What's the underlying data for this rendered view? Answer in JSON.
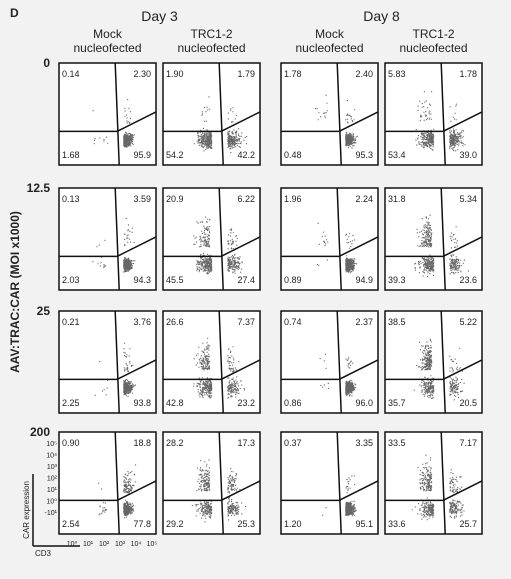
{
  "panel_letter": "D",
  "row_axis_label": "AAV:TRAC:CAR (MOI x1000)",
  "x_axis_title": "CD3",
  "y_axis_title": "CAR expression",
  "x_tick_labels": [
    "10⁰",
    "10¹",
    "10²",
    "10³",
    "10⁴",
    "10⁵"
  ],
  "y_tick_labels": [
    "10⁵",
    "10⁴",
    "10³",
    "10²",
    "10¹",
    "10⁰",
    "-10¹"
  ],
  "colors": {
    "background": "#f2f2f2",
    "panel": "#ffffff",
    "ink": "#222222"
  },
  "chart_data": {
    "type": "scatter",
    "description_type": "flow-cytometry-quadrant-grid",
    "groups": [
      {
        "label": "Day 3",
        "columns": [
          "Mock\nnucleofected",
          "TRC1-2\nnucleofected"
        ]
      },
      {
        "label": "Day 8",
        "columns": [
          "Mock\nnucleofected",
          "TRC1-2\nnucleofected"
        ]
      }
    ],
    "columns": [
      {
        "day": "Day 3",
        "label": "Mock nucleofected"
      },
      {
        "day": "Day 3",
        "label": "TRC1-2 nucleofected"
      },
      {
        "day": "Day 8",
        "label": "Mock nucleofected"
      },
      {
        "day": "Day 8",
        "label": "TRC1-2 nucleofected"
      }
    ],
    "rows": [
      "0",
      "12.5",
      "25",
      "200"
    ],
    "quadrant_order": [
      "upper-left",
      "upper-right",
      "lower-left",
      "lower-right"
    ],
    "quadrants": [
      [
        [
          "0.14",
          "2.30",
          "1.68",
          "95.9"
        ],
        [
          "1.90",
          "1.79",
          "54.2",
          "42.2"
        ],
        [
          "1.78",
          "2.40",
          "0.48",
          "95.3"
        ],
        [
          "5.83",
          "1.78",
          "53.4",
          "39.0"
        ]
      ],
      [
        [
          "0.13",
          "3.59",
          "2.03",
          "94.3"
        ],
        [
          "20.9",
          "6.22",
          "45.5",
          "27.4"
        ],
        [
          "1.96",
          "2.24",
          "0.89",
          "94.9"
        ],
        [
          "31.8",
          "5.34",
          "39.3",
          "23.6"
        ]
      ],
      [
        [
          "0.21",
          "3.76",
          "2.25",
          "93.8"
        ],
        [
          "26.6",
          "7.37",
          "42.8",
          "23.2"
        ],
        [
          "0.74",
          "2.37",
          "0.86",
          "96.0"
        ],
        [
          "38.5",
          "5.22",
          "35.7",
          "20.5"
        ]
      ],
      [
        [
          "0.90",
          "18.8",
          "2.54",
          "77.8"
        ],
        [
          "28.2",
          "17.3",
          "29.2",
          "25.3"
        ],
        [
          "0.37",
          "3.35",
          "1.20",
          "95.1"
        ],
        [
          "33.5",
          "7.17",
          "33.6",
          "25.7"
        ]
      ]
    ]
  }
}
